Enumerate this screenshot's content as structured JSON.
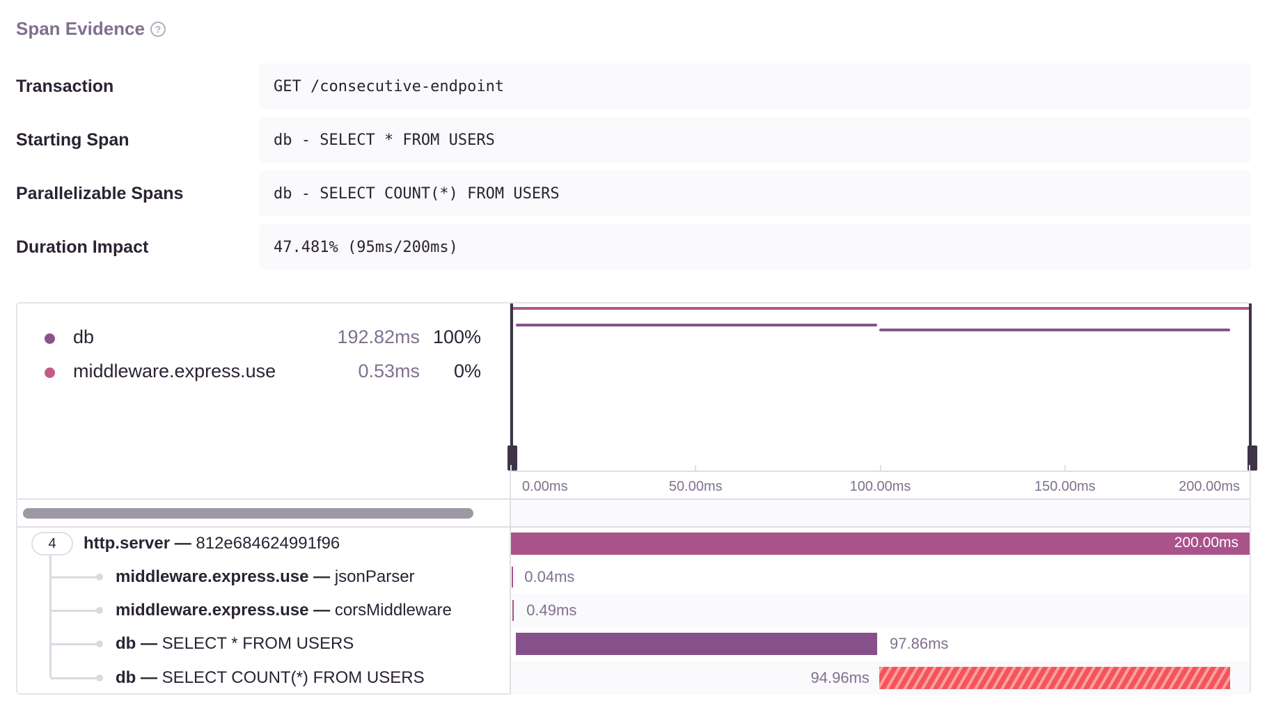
{
  "header": {
    "title": "Span Evidence",
    "help_icon": "question-circle-icon"
  },
  "evidence": [
    {
      "label": "Transaction",
      "value": "GET /consecutive-endpoint"
    },
    {
      "label": "Starting Span",
      "value": "db - SELECT * FROM USERS"
    },
    {
      "label": "Parallelizable Spans",
      "value": "db - SELECT COUNT(*) FROM USERS"
    },
    {
      "label": "Duration Impact",
      "value": "47.481% (95ms/200ms)"
    }
  ],
  "legend": [
    {
      "name": "db",
      "duration": "192.82ms",
      "percent": "100%",
      "color": "#8b5489"
    },
    {
      "name": "middleware.express.use",
      "duration": "0.53ms",
      "percent": "0%",
      "color": "#c45a87"
    }
  ],
  "axis": {
    "ticks": [
      "0.00ms",
      "50.00ms",
      "100.00ms",
      "150.00ms",
      "200.00ms"
    ],
    "range_ms": [
      0,
      200
    ]
  },
  "tree": {
    "child_count": "4"
  },
  "spans": [
    {
      "op": "http.server",
      "sep": " — ",
      "desc": "812e684624991f96",
      "duration": "200.00ms",
      "start_ms": 0,
      "duration_ms": 200,
      "color": "#a9538a",
      "style": "solid"
    },
    {
      "op": "middleware.express.use",
      "sep": " — ",
      "desc": "jsonParser",
      "duration": "0.04ms",
      "start_ms": 0.2,
      "duration_ms": 0.04,
      "color": "#a9538a",
      "style": "solid"
    },
    {
      "op": "middleware.express.use",
      "sep": " — ",
      "desc": "corsMiddleware",
      "duration": "0.49ms",
      "start_ms": 0.3,
      "duration_ms": 0.49,
      "color": "#a9538a",
      "style": "solid"
    },
    {
      "op": "db",
      "sep": " — ",
      "desc": "SELECT * FROM USERS",
      "duration": "97.86ms",
      "start_ms": 1.3,
      "duration_ms": 97.86,
      "color": "#86518a",
      "style": "solid"
    },
    {
      "op": "db",
      "sep": " — ",
      "desc": "SELECT COUNT(*) FROM USERS",
      "duration": "94.96ms",
      "start_ms": 99.7,
      "duration_ms": 94.96,
      "color": "#f55459",
      "style": "hatched"
    }
  ]
}
